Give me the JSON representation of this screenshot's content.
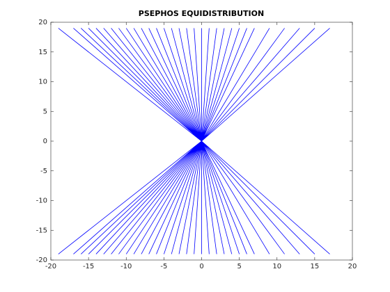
{
  "chart_data": {
    "type": "line",
    "title": "PSEPHOS EQUIDISTRIBUTION",
    "color": "#0000ff",
    "x": [
      0,
      -19,
      0,
      -17,
      0,
      -16,
      0,
      -15,
      0,
      -14,
      0,
      -13,
      0,
      -12,
      0,
      -11,
      0,
      -10,
      0,
      -9,
      0,
      -8,
      0,
      -7,
      0,
      -6,
      0,
      -5,
      0,
      -4,
      0,
      -3,
      0,
      -2,
      0,
      -1,
      0,
      0,
      0,
      1,
      0,
      2,
      0,
      3,
      0,
      4,
      0,
      5,
      0,
      6,
      0,
      7,
      0,
      9,
      0,
      11,
      0,
      13,
      0,
      15,
      0,
      17,
      0,
      -19,
      0,
      -17,
      0,
      -16,
      0,
      -15,
      0,
      -14,
      0,
      -13,
      0,
      -12,
      0,
      -11,
      0,
      -10,
      0,
      -9,
      0,
      -8,
      0,
      -7,
      0,
      -6,
      0,
      -5,
      0,
      -4,
      0,
      -3,
      0,
      -2,
      0,
      -1,
      0,
      0,
      0,
      1,
      0,
      2,
      0,
      3,
      0,
      4,
      0,
      5,
      0,
      6,
      0,
      7,
      0,
      9,
      0,
      11,
      0,
      13,
      0,
      15,
      0,
      17
    ],
    "values": [
      0,
      19,
      0,
      19,
      0,
      19,
      0,
      19,
      0,
      19,
      0,
      19,
      0,
      19,
      0,
      19,
      0,
      19,
      0,
      19,
      0,
      19,
      0,
      19,
      0,
      19,
      0,
      19,
      0,
      19,
      0,
      19,
      0,
      19,
      0,
      19,
      0,
      19,
      0,
      19,
      0,
      19,
      0,
      19,
      0,
      19,
      0,
      19,
      0,
      19,
      0,
      19,
      0,
      19,
      0,
      19,
      0,
      19,
      0,
      19,
      0,
      19,
      0,
      -19,
      0,
      -19,
      0,
      -19,
      0,
      -19,
      0,
      -19,
      0,
      -19,
      0,
      -19,
      0,
      -19,
      0,
      -19,
      0,
      -19,
      0,
      -19,
      0,
      -19,
      0,
      -19,
      0,
      -19,
      0,
      -19,
      0,
      -19,
      0,
      -19,
      0,
      -19,
      0,
      -19,
      0,
      -19,
      0,
      -19,
      0,
      -19,
      0,
      -19,
      0,
      -19,
      0,
      -19,
      0,
      -19,
      0,
      -19,
      0,
      -19,
      0,
      -19,
      0,
      -19,
      0,
      -19
    ],
    "xlim": [
      -20,
      20
    ],
    "ylim": [
      -20,
      20
    ],
    "xticks": [
      -20,
      -15,
      -10,
      -5,
      0,
      5,
      10,
      15,
      20
    ],
    "yticks": [
      -20,
      -15,
      -10,
      -5,
      0,
      5,
      10,
      15,
      20
    ]
  }
}
